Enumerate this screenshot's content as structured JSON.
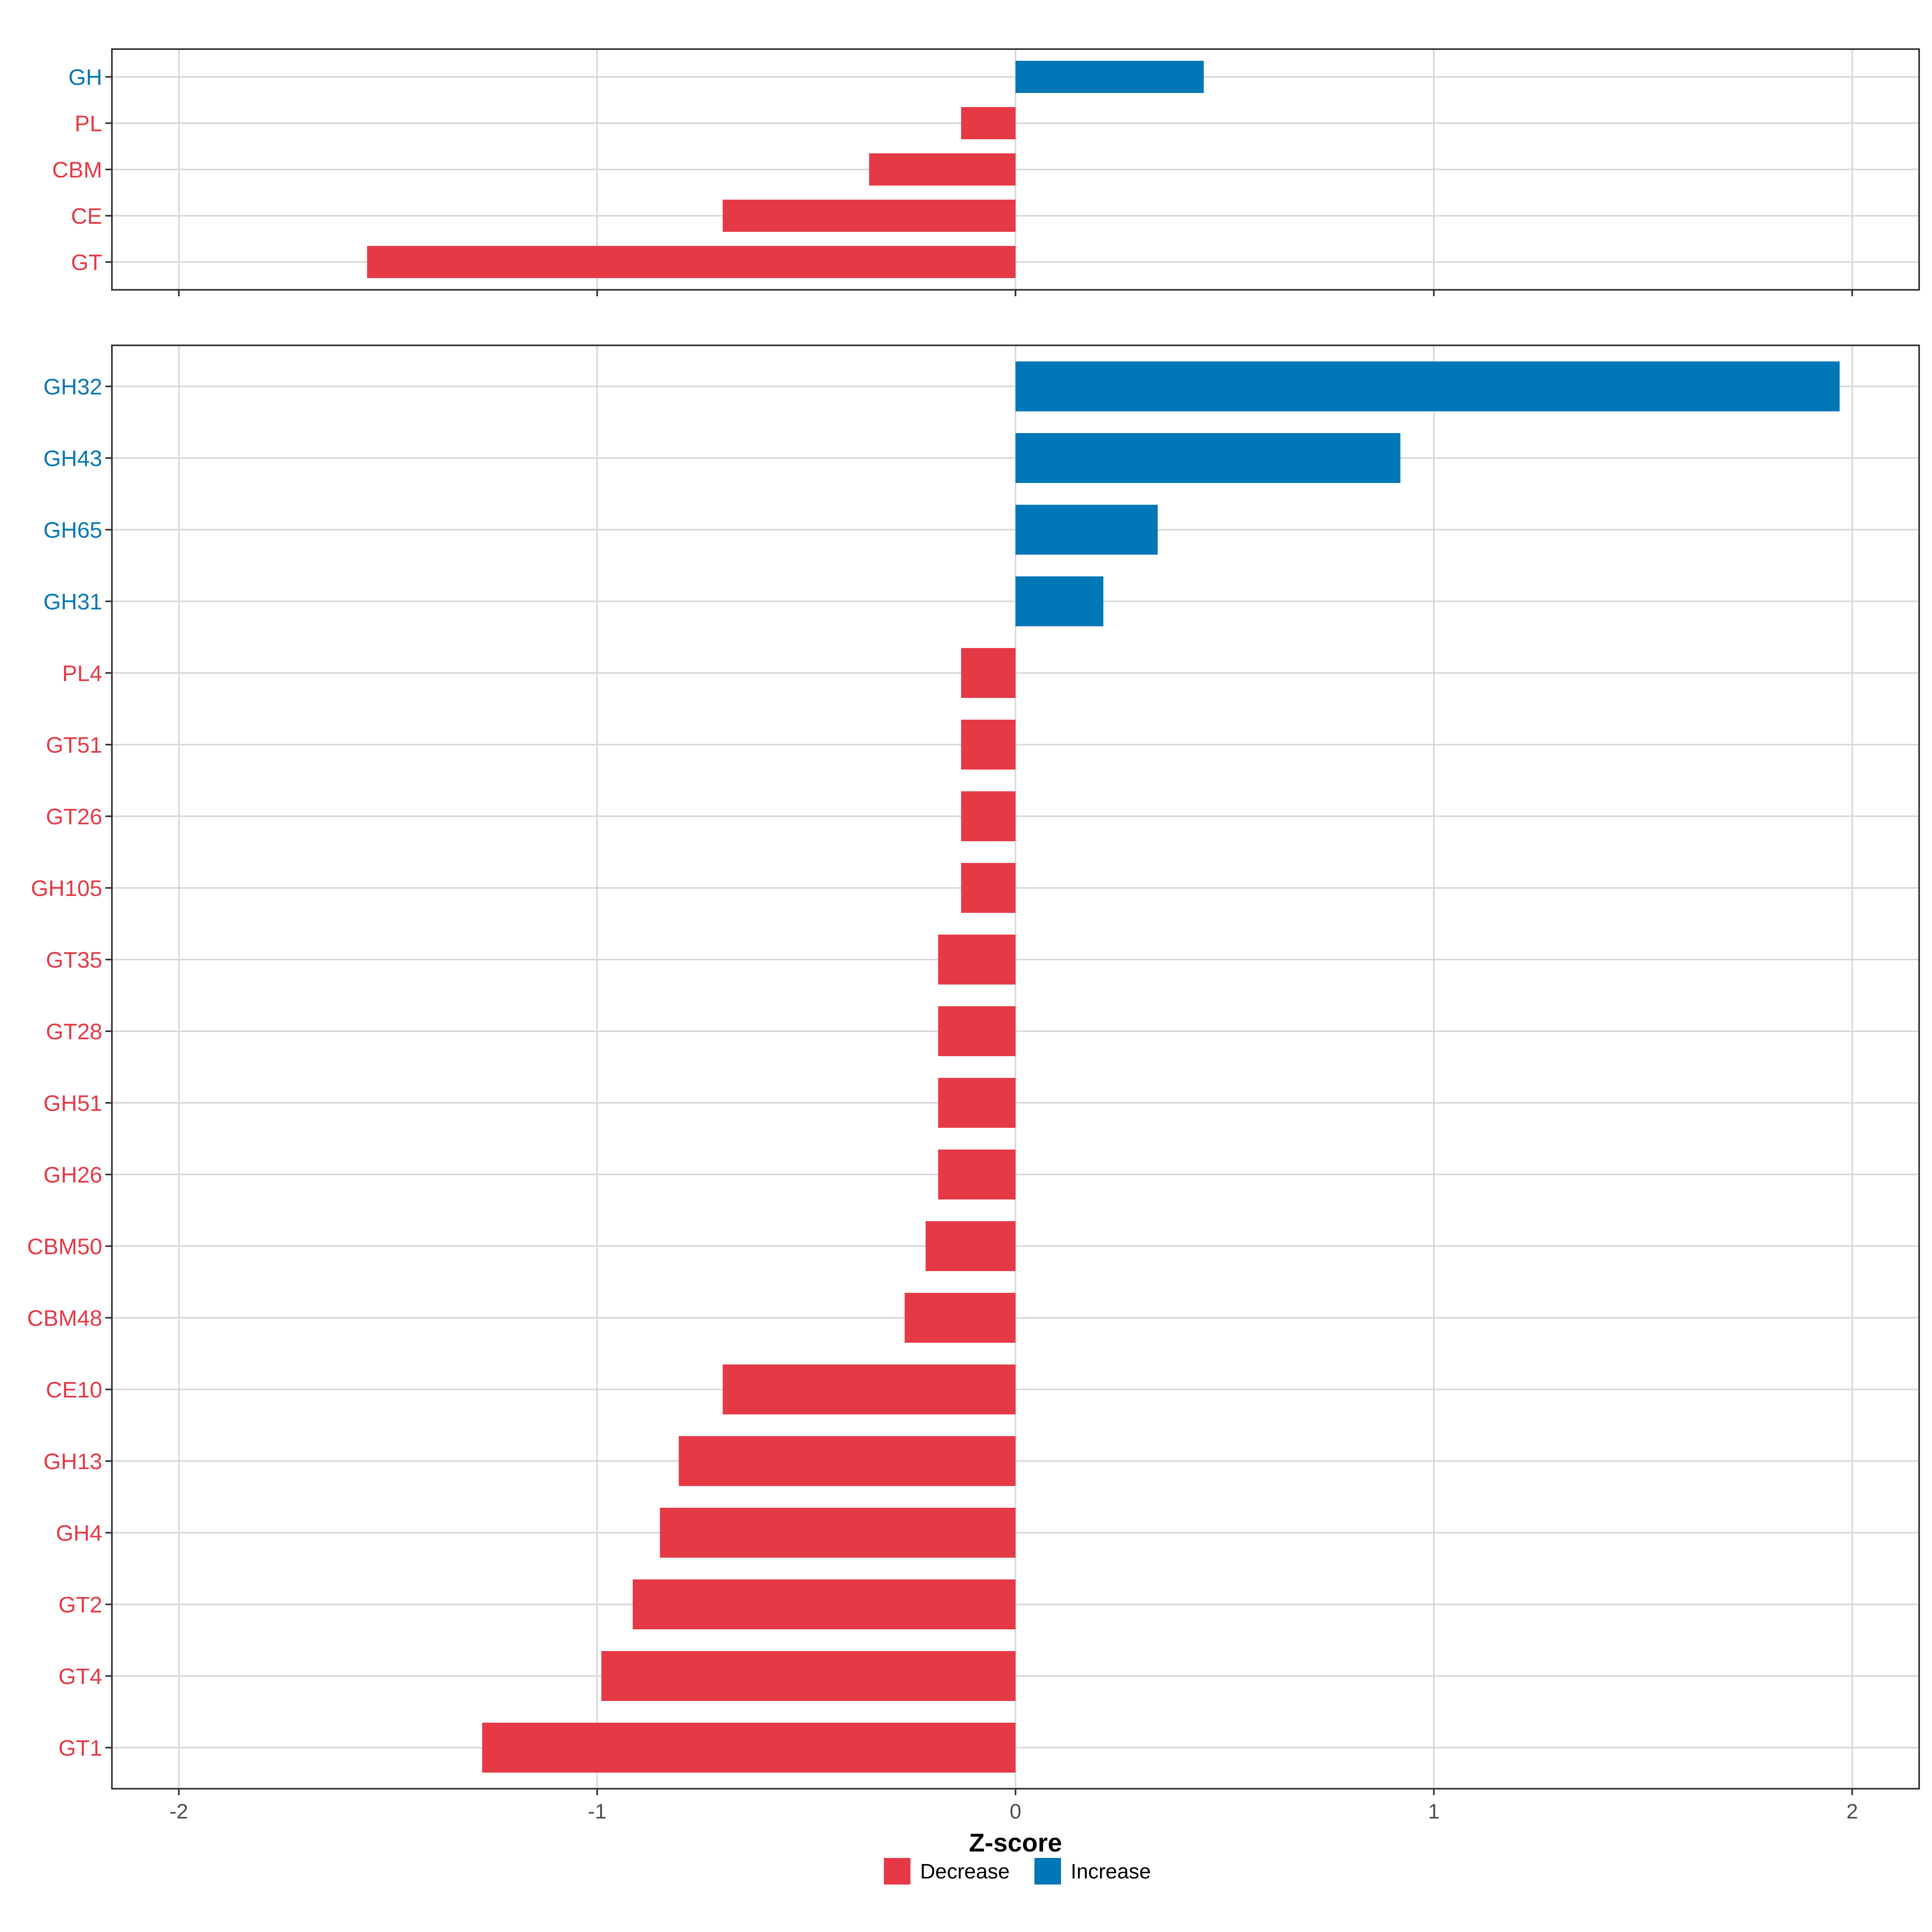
{
  "colors": {
    "decrease": "#e63946",
    "increase": "#0077b6",
    "grid": "#d9d9d9",
    "frame": "#333333"
  },
  "chart_data": [
    {
      "type": "bar",
      "orientation": "horizontal",
      "panel": "top",
      "categories": [
        "GH",
        "PL",
        "CBM",
        "CE",
        "GT"
      ],
      "values": [
        0.45,
        -0.13,
        -0.35,
        -0.7,
        -1.55
      ],
      "directions": [
        "Increase",
        "Decrease",
        "Decrease",
        "Decrease",
        "Decrease"
      ],
      "xlim": [
        -2.16,
        2.16
      ],
      "x_ticks": [
        -2,
        -1,
        0,
        1,
        2
      ],
      "grid": true
    },
    {
      "type": "bar",
      "orientation": "horizontal",
      "panel": "bottom",
      "categories": [
        "GH32",
        "GH43",
        "GH65",
        "GH31",
        "PL4",
        "GT51",
        "GT26",
        "GH105",
        "GT35",
        "GT28",
        "GH51",
        "GH26",
        "CBM50",
        "CBM48",
        "CE10",
        "GH13",
        "GH4",
        "GT2",
        "GT4",
        "GT1"
      ],
      "values": [
        1.97,
        0.92,
        0.34,
        0.21,
        -0.13,
        -0.13,
        -0.13,
        -0.13,
        -0.185,
        -0.185,
        -0.185,
        -0.185,
        -0.215,
        -0.265,
        -0.7,
        -0.805,
        -0.85,
        -0.915,
        -0.99,
        -1.275
      ],
      "directions": [
        "Increase",
        "Increase",
        "Increase",
        "Increase",
        "Decrease",
        "Decrease",
        "Decrease",
        "Decrease",
        "Decrease",
        "Decrease",
        "Decrease",
        "Decrease",
        "Decrease",
        "Decrease",
        "Decrease",
        "Decrease",
        "Decrease",
        "Decrease",
        "Decrease",
        "Decrease"
      ],
      "xlim": [
        -2.16,
        2.16
      ],
      "x_ticks": [
        -2,
        -1,
        0,
        1,
        2
      ],
      "x_tick_labels": [
        "-2",
        "-1",
        "0",
        "1",
        "2"
      ],
      "xlabel": "Z-score",
      "grid": true
    }
  ],
  "legend": {
    "position": "bottom",
    "items": [
      {
        "label": "Decrease",
        "key": "decrease"
      },
      {
        "label": "Increase",
        "key": "increase"
      }
    ]
  }
}
